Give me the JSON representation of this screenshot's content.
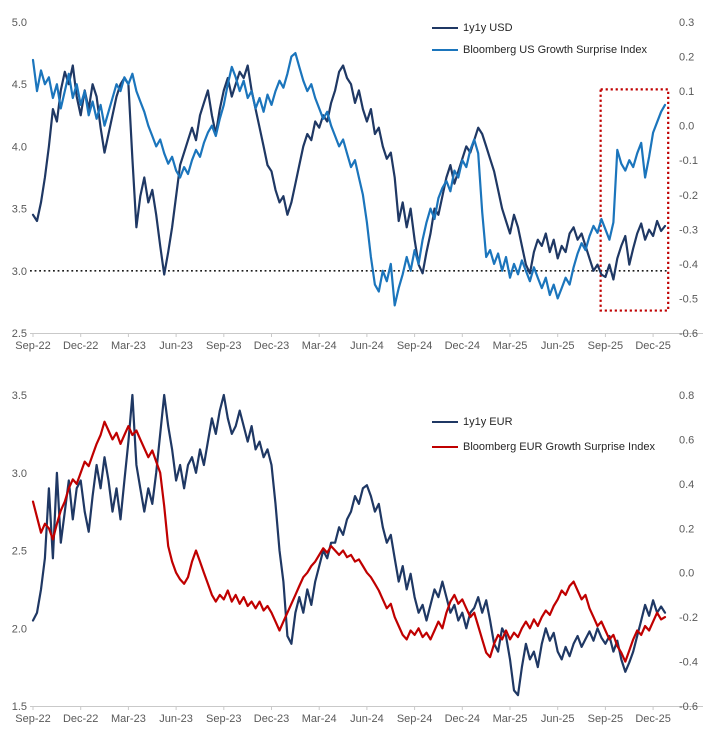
{
  "page": {
    "background": "#ffffff",
    "axis_label_color": "#595959",
    "axis_line_color": "#c9c9c9",
    "legend_text_color": "#262626"
  },
  "chart_data": [
    {
      "type": "line",
      "id": "usd-chart",
      "x_tick_labels": [
        "Sep-22",
        "Dec-22",
        "Mar-23",
        "Jun-23",
        "Sep-23",
        "Dec-23",
        "Mar-24",
        "Jun-24",
        "Sep-24",
        "Dec-24",
        "Mar-25",
        "Jun-25",
        "Sep-25",
        "Dec-25"
      ],
      "x_months_per_point": 0.25,
      "left_axis": {
        "min": 2.5,
        "max": 5.0,
        "ticks": [
          "5.0",
          "4.5",
          "4.0",
          "3.5",
          "3.0",
          "2.5"
        ]
      },
      "right_axis": {
        "min": -0.6,
        "max": 0.3,
        "ticks": [
          "0.3",
          "0.2",
          "0.1",
          "0.0",
          "-0.1",
          "-0.2",
          "-0.3",
          "-0.4",
          "-0.5",
          "-0.6"
        ]
      },
      "grid": "off",
      "legend_position": "top-right-inside",
      "series": [
        {
          "name": "1y1y USD",
          "axis": "left",
          "color": "#1f3864",
          "values": [
            3.45,
            3.4,
            3.55,
            3.75,
            4.0,
            4.3,
            4.2,
            4.45,
            4.6,
            4.5,
            4.65,
            4.4,
            4.25,
            4.45,
            4.3,
            4.5,
            4.4,
            4.15,
            3.95,
            4.1,
            4.25,
            4.4,
            4.5,
            4.55,
            4.5,
            3.9,
            3.35,
            3.6,
            3.75,
            3.55,
            3.65,
            3.45,
            3.2,
            2.97,
            3.15,
            3.35,
            3.6,
            3.85,
            3.95,
            4.05,
            4.15,
            4.05,
            4.25,
            4.35,
            4.45,
            4.25,
            4.1,
            4.3,
            4.45,
            4.55,
            4.4,
            4.5,
            4.6,
            4.55,
            4.65,
            4.45,
            4.3,
            4.15,
            4.0,
            3.85,
            3.8,
            3.65,
            3.55,
            3.6,
            3.45,
            3.55,
            3.7,
            3.85,
            4.0,
            4.1,
            4.05,
            4.2,
            4.15,
            4.25,
            4.2,
            4.35,
            4.45,
            4.6,
            4.65,
            4.55,
            4.5,
            4.35,
            4.45,
            4.3,
            4.2,
            4.3,
            4.1,
            4.15,
            4.0,
            3.9,
            3.95,
            3.75,
            3.4,
            3.55,
            3.35,
            3.5,
            3.25,
            3.05,
            2.98,
            3.15,
            3.3,
            3.5,
            3.45,
            3.6,
            3.75,
            3.85,
            3.7,
            3.8,
            3.9,
            4.0,
            3.95,
            4.05,
            4.15,
            4.1,
            4.0,
            3.9,
            3.8,
            3.65,
            3.5,
            3.4,
            3.3,
            3.45,
            3.35,
            3.2,
            3.05,
            2.98,
            3.15,
            3.25,
            3.2,
            3.3,
            3.15,
            3.25,
            3.1,
            3.2,
            3.15,
            3.3,
            3.35,
            3.25,
            3.3,
            3.2,
            3.1,
            3.0,
            3.05,
            2.97,
            2.95,
            3.05,
            2.93,
            3.1,
            3.2,
            3.28,
            3.05,
            3.18,
            3.3,
            3.38,
            3.25,
            3.33,
            3.28,
            3.4,
            3.32,
            3.36
          ]
        },
        {
          "name": "Bloomberg US Growth Surprise Index",
          "axis": "right",
          "color": "#1b75bc",
          "values": [
            0.19,
            0.1,
            0.16,
            0.12,
            0.14,
            0.08,
            0.12,
            0.05,
            0.1,
            0.15,
            0.08,
            0.12,
            0.06,
            0.1,
            0.03,
            0.07,
            0.02,
            0.06,
            0.0,
            0.04,
            0.08,
            0.12,
            0.1,
            0.14,
            0.12,
            0.15,
            0.1,
            0.07,
            0.04,
            0.0,
            -0.03,
            -0.06,
            -0.04,
            -0.08,
            -0.11,
            -0.09,
            -0.13,
            -0.15,
            -0.12,
            -0.14,
            -0.1,
            -0.07,
            -0.09,
            -0.05,
            -0.02,
            0.0,
            -0.03,
            0.02,
            0.06,
            0.12,
            0.17,
            0.14,
            0.1,
            0.13,
            0.08,
            0.1,
            0.05,
            0.08,
            0.04,
            0.09,
            0.06,
            0.1,
            0.13,
            0.11,
            0.15,
            0.2,
            0.21,
            0.17,
            0.13,
            0.1,
            0.12,
            0.08,
            0.05,
            0.02,
            0.04,
            0.0,
            -0.03,
            -0.06,
            -0.04,
            -0.08,
            -0.12,
            -0.1,
            -0.15,
            -0.2,
            -0.28,
            -0.38,
            -0.46,
            -0.48,
            -0.42,
            -0.45,
            -0.4,
            -0.52,
            -0.47,
            -0.43,
            -0.38,
            -0.42,
            -0.36,
            -0.4,
            -0.33,
            -0.28,
            -0.24,
            -0.27,
            -0.21,
            -0.18,
            -0.16,
            -0.19,
            -0.13,
            -0.15,
            -0.1,
            -0.12,
            -0.07,
            -0.04,
            -0.08,
            -0.25,
            -0.38,
            -0.36,
            -0.4,
            -0.37,
            -0.42,
            -0.38,
            -0.44,
            -0.4,
            -0.43,
            -0.39,
            -0.42,
            -0.45,
            -0.41,
            -0.44,
            -0.47,
            -0.44,
            -0.49,
            -0.46,
            -0.5,
            -0.47,
            -0.44,
            -0.46,
            -0.41,
            -0.37,
            -0.34,
            -0.36,
            -0.32,
            -0.29,
            -0.31,
            -0.27,
            -0.3,
            -0.33,
            -0.28,
            -0.07,
            -0.11,
            -0.13,
            -0.1,
            -0.12,
            -0.08,
            -0.05,
            -0.15,
            -0.09,
            -0.02,
            0.01,
            0.04,
            0.06
          ]
        }
      ],
      "annotations": {
        "dotted_hline": {
          "left_value": 3.0,
          "color": "#1a1a1a"
        },
        "highlight_box": {
          "x_month_start": 35.7,
          "x_month_end": 39.95,
          "right_value_top": 0.105,
          "right_value_bottom": -0.535,
          "color": "#c00000"
        }
      }
    },
    {
      "type": "line",
      "id": "eur-chart",
      "x_tick_labels": [
        "Sep-22",
        "Dec-22",
        "Mar-23",
        "Jun-23",
        "Sep-23",
        "Dec-23",
        "Mar-24",
        "Jun-24",
        "Sep-24",
        "Dec-24",
        "Mar-25",
        "Jun-25",
        "Sep-25",
        "Dec-25"
      ],
      "x_months_per_point": 0.25,
      "left_axis": {
        "min": 1.5,
        "max": 3.5,
        "ticks": [
          "3.5",
          "3.0",
          "2.5",
          "2.0",
          "1.5"
        ]
      },
      "right_axis": {
        "min": -0.6,
        "max": 0.8,
        "ticks": [
          "0.8",
          "0.6",
          "0.4",
          "0.2",
          "0.0",
          "-0.2",
          "-0.4",
          "-0.6"
        ]
      },
      "grid": "off",
      "legend_position": "top-right-inside",
      "series": [
        {
          "name": "1y1y EUR",
          "axis": "left",
          "color": "#1f3864",
          "values": [
            2.05,
            2.1,
            2.25,
            2.45,
            2.9,
            2.45,
            3.0,
            2.55,
            2.75,
            2.95,
            2.7,
            2.9,
            2.95,
            2.75,
            2.62,
            2.85,
            3.05,
            2.9,
            3.1,
            2.95,
            2.75,
            2.9,
            2.7,
            2.95,
            3.2,
            3.5,
            3.05,
            2.9,
            2.75,
            2.9,
            2.8,
            3.0,
            3.25,
            3.5,
            3.3,
            3.15,
            2.95,
            3.05,
            2.9,
            3.05,
            3.1,
            3.0,
            3.15,
            3.05,
            3.2,
            3.35,
            3.25,
            3.4,
            3.5,
            3.35,
            3.25,
            3.3,
            3.4,
            3.3,
            3.2,
            3.3,
            3.15,
            3.2,
            3.1,
            3.15,
            3.05,
            2.8,
            2.5,
            2.3,
            1.95,
            1.9,
            2.1,
            2.2,
            2.1,
            2.25,
            2.15,
            2.3,
            2.4,
            2.5,
            2.45,
            2.55,
            2.55,
            2.65,
            2.6,
            2.7,
            2.75,
            2.85,
            2.8,
            2.9,
            2.92,
            2.85,
            2.75,
            2.8,
            2.65,
            2.55,
            2.6,
            2.45,
            2.3,
            2.4,
            2.25,
            2.35,
            2.2,
            2.1,
            2.15,
            2.05,
            2.15,
            2.25,
            2.2,
            2.3,
            2.2,
            2.1,
            2.15,
            2.05,
            2.1,
            2.0,
            2.1,
            2.13,
            2.2,
            2.1,
            2.18,
            2.05,
            1.9,
            1.85,
            2.0,
            1.95,
            1.8,
            1.6,
            1.57,
            1.75,
            1.9,
            1.8,
            1.85,
            1.75,
            1.9,
            2.0,
            1.92,
            1.97,
            1.85,
            1.8,
            1.88,
            1.82,
            1.9,
            1.95,
            1.88,
            1.93,
            1.98,
            1.92,
            2.0,
            1.94,
            1.9,
            1.95,
            1.85,
            1.92,
            1.8,
            1.72,
            1.78,
            1.85,
            1.95,
            2.05,
            2.15,
            2.08,
            2.18,
            2.1,
            2.14,
            2.1
          ]
        },
        {
          "name": "Bloomberg EUR Growth Surprise Index",
          "axis": "right",
          "color": "#c00000",
          "values": [
            0.32,
            0.25,
            0.18,
            0.22,
            0.2,
            0.15,
            0.22,
            0.28,
            0.32,
            0.38,
            0.42,
            0.4,
            0.45,
            0.5,
            0.48,
            0.53,
            0.58,
            0.62,
            0.68,
            0.64,
            0.6,
            0.63,
            0.58,
            0.62,
            0.66,
            0.62,
            0.64,
            0.6,
            0.56,
            0.52,
            0.55,
            0.5,
            0.45,
            0.3,
            0.12,
            0.05,
            0.0,
            -0.03,
            -0.05,
            -0.02,
            0.05,
            0.1,
            0.05,
            0.0,
            -0.05,
            -0.1,
            -0.13,
            -0.1,
            -0.12,
            -0.08,
            -0.13,
            -0.1,
            -0.14,
            -0.11,
            -0.15,
            -0.13,
            -0.16,
            -0.13,
            -0.17,
            -0.15,
            -0.18,
            -0.22,
            -0.26,
            -0.22,
            -0.18,
            -0.14,
            -0.1,
            -0.06,
            -0.02,
            0.0,
            0.03,
            0.05,
            0.08,
            0.11,
            0.09,
            0.12,
            0.1,
            0.08,
            0.1,
            0.07,
            0.08,
            0.05,
            0.06,
            0.03,
            0.0,
            -0.02,
            -0.05,
            -0.08,
            -0.12,
            -0.16,
            -0.14,
            -0.2,
            -0.24,
            -0.28,
            -0.3,
            -0.26,
            -0.28,
            -0.25,
            -0.29,
            -0.27,
            -0.3,
            -0.26,
            -0.22,
            -0.25,
            -0.18,
            -0.13,
            -0.1,
            -0.14,
            -0.12,
            -0.16,
            -0.2,
            -0.18,
            -0.24,
            -0.3,
            -0.36,
            -0.38,
            -0.32,
            -0.28,
            -0.3,
            -0.26,
            -0.3,
            -0.27,
            -0.29,
            -0.25,
            -0.22,
            -0.25,
            -0.21,
            -0.24,
            -0.2,
            -0.17,
            -0.19,
            -0.15,
            -0.12,
            -0.08,
            -0.1,
            -0.06,
            -0.04,
            -0.08,
            -0.12,
            -0.1,
            -0.16,
            -0.2,
            -0.24,
            -0.22,
            -0.26,
            -0.3,
            -0.28,
            -0.33,
            -0.36,
            -0.4,
            -0.35,
            -0.3,
            -0.26,
            -0.28,
            -0.24,
            -0.26,
            -0.22,
            -0.18,
            -0.21,
            -0.2
          ]
        }
      ],
      "annotations": {}
    }
  ]
}
